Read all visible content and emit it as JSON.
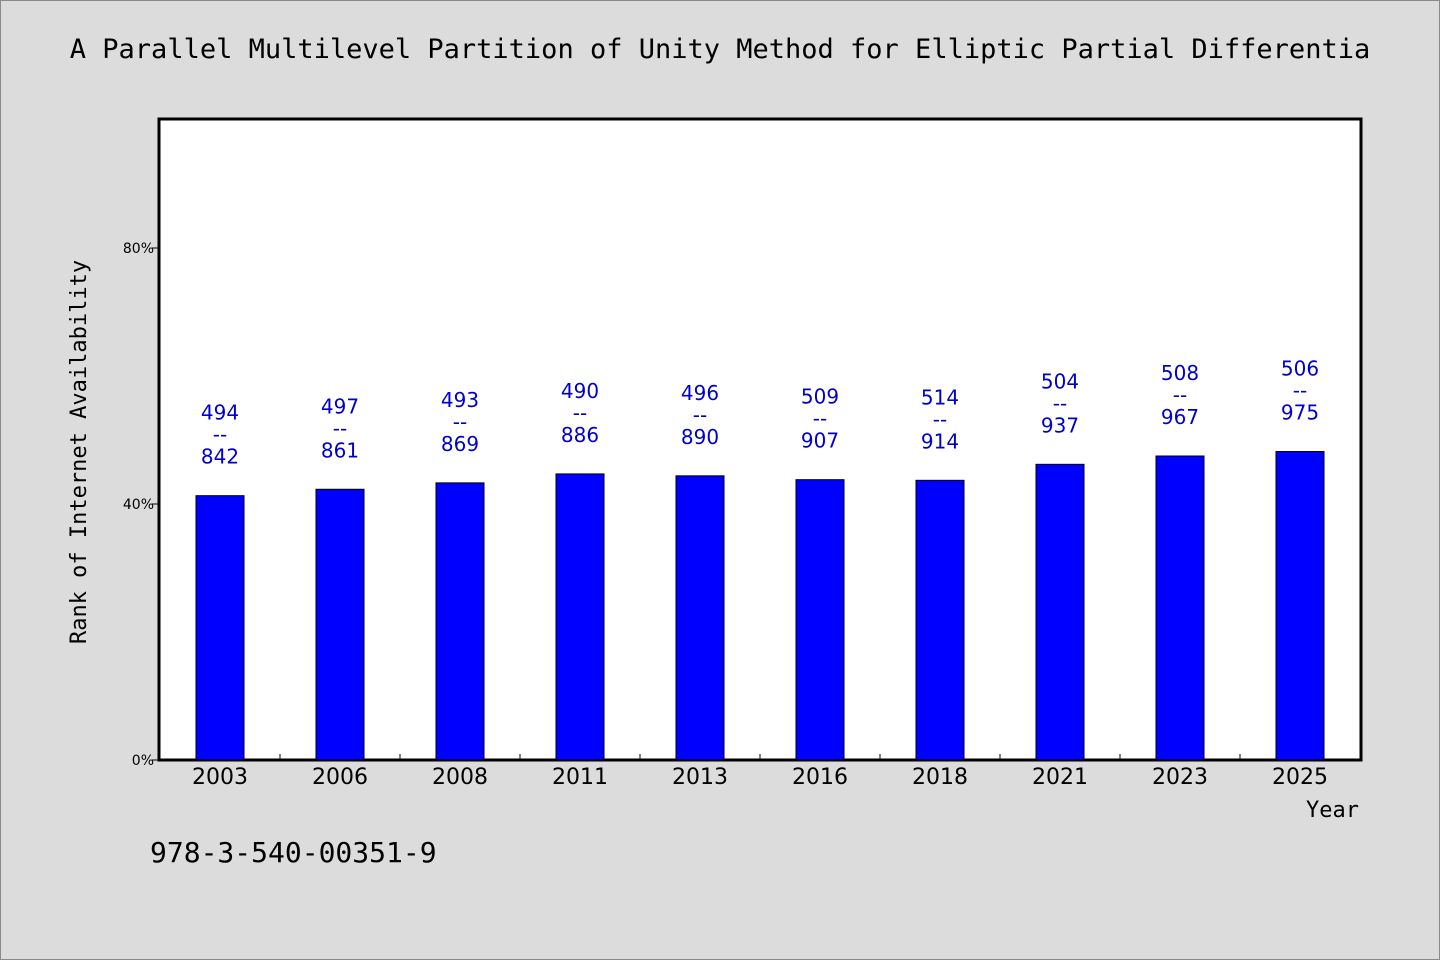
{
  "chart_data": {
    "type": "bar",
    "title": "A Parallel Multilevel Partition of Unity Method for Elliptic Partial Differentia",
    "xlabel": "Year",
    "ylabel": "Rank of Internet Availability",
    "categories": [
      "2003",
      "2006",
      "2008",
      "2011",
      "2013",
      "2016",
      "2018",
      "2021",
      "2023",
      "2025"
    ],
    "values": [
      41.3,
      42.3,
      43.3,
      44.7,
      44.4,
      43.8,
      43.7,
      46.2,
      47.5,
      48.2
    ],
    "data_labels": [
      [
        "494",
        "--",
        "842"
      ],
      [
        "497",
        "--",
        "861"
      ],
      [
        "493",
        "--",
        "869"
      ],
      [
        "490",
        "--",
        "886"
      ],
      [
        "496",
        "--",
        "890"
      ],
      [
        "509",
        "--",
        "907"
      ],
      [
        "514",
        "--",
        "914"
      ],
      [
        "504",
        "--",
        "937"
      ],
      [
        "508",
        "--",
        "967"
      ],
      [
        "506",
        "--",
        "975"
      ]
    ],
    "yticks": [
      0,
      40,
      80
    ],
    "ytick_labels": [
      "0%",
      "40%",
      "80%"
    ],
    "ylim": [
      0,
      100
    ],
    "grid": false,
    "bar_color": "#0000ff",
    "label_color": "#0000cc"
  },
  "footer_text": "978-3-540-00351-9"
}
